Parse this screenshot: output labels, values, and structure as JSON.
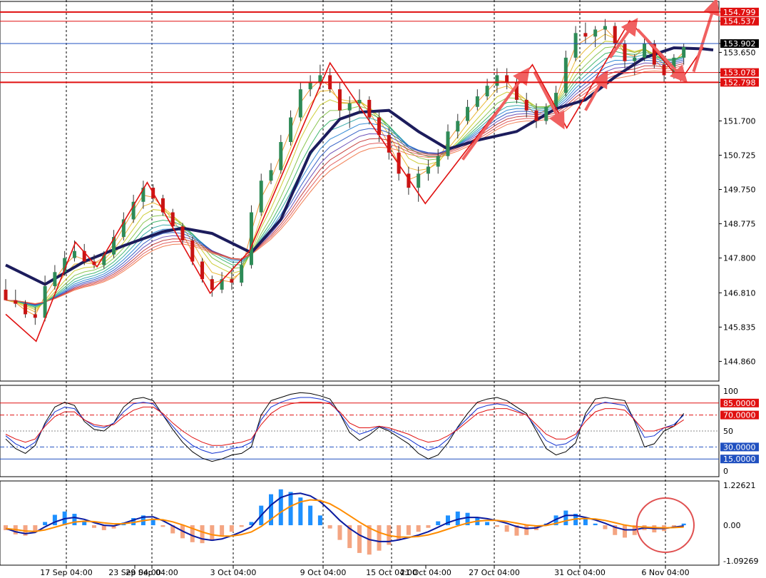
{
  "colors": {
    "background": "#ffffff",
    "plot_bg": "#f0f0f0",
    "grid": "#000000",
    "bull_candle": "#2e8b57",
    "bear_candle": "#c81414",
    "zigzag": "#e01010",
    "arrow": "#f06060",
    "ma_thick": "#1c1c5c",
    "hline_red": "#e01010",
    "hline_blue": "#2050c0",
    "osc_black": "#000000",
    "osc_blue": "#1030d0",
    "osc_red": "#e01010",
    "macd_hist_pos": "#1e90ff",
    "macd_hist_neg": "#f4a582",
    "macd_line": "#0a1aa0",
    "signal_line": "#ff8c00",
    "circle": "#e05050"
  },
  "chart_data": [
    {
      "type": "candlestick",
      "panel": "price",
      "yticks": [
        "154.799",
        "154.537",
        "153.902",
        "153.650",
        "153.078",
        "152.798",
        "151.700",
        "150.725",
        "149.750",
        "148.775",
        "147.800",
        "146.810",
        "145.835",
        "144.860"
      ],
      "ylim": [
        144.3,
        155.1
      ],
      "xticks": [
        "17 Sep 04:00",
        "23 Sep 04:00",
        "29 Sep 04:00",
        "3 Oct 04:00",
        "9 Oct 04:00",
        "15 Oct 04:00",
        "21 Oct 04:00",
        "27 Oct 04:00",
        "31 Oct 04:00",
        "6 Nov 04:00"
      ],
      "levels": [
        {
          "value": 154.799,
          "label": "154.799",
          "style": "red-thick"
        },
        {
          "value": 154.537,
          "label": "154.537",
          "style": "red-thin"
        },
        {
          "value": 153.902,
          "label": "153.902",
          "style": "blue-current"
        },
        {
          "value": 153.078,
          "label": "153.078",
          "style": "red-thin"
        },
        {
          "value": 152.798,
          "label": "152.798",
          "style": "red-thick"
        }
      ],
      "zigzag": [
        {
          "x": 0,
          "y": 146.2
        },
        {
          "x": 3.1,
          "y": 145.43
        },
        {
          "x": 7.1,
          "y": 148.25
        },
        {
          "x": 9.3,
          "y": 147.55
        },
        {
          "x": 14.4,
          "y": 149.95
        },
        {
          "x": 20.8,
          "y": 146.8
        },
        {
          "x": 24.8,
          "y": 148.0
        },
        {
          "x": 33.0,
          "y": 153.35
        },
        {
          "x": 42.7,
          "y": 149.35
        },
        {
          "x": 53.6,
          "y": 153.3
        },
        {
          "x": 57.1,
          "y": 151.5
        },
        {
          "x": 63.5,
          "y": 154.55
        },
        {
          "x": 68.7,
          "y": 152.85
        },
        {
          "x": 71.0,
          "y": 153.8
        }
      ],
      "projection_arrows": [
        {
          "from": [
            46.5,
            150.6
          ],
          "to": [
            53.0,
            153.1
          ]
        },
        {
          "from": [
            53.8,
            153.1
          ],
          "to": [
            56.6,
            151.6
          ]
        },
        {
          "from": [
            59.0,
            152.0
          ],
          "to": [
            61.0,
            153.0
          ]
        },
        {
          "from": [
            61.5,
            153.5
          ],
          "to": [
            64.0,
            154.5
          ]
        },
        {
          "from": [
            64.3,
            154.3
          ],
          "to": [
            69.0,
            152.9
          ]
        },
        {
          "from": [
            70.0,
            153.1
          ],
          "to": [
            72.2,
            155.05
          ]
        }
      ],
      "trend_ma": [
        {
          "x": 0,
          "y": 147.6
        },
        {
          "x": 4,
          "y": 147.05
        },
        {
          "x": 8,
          "y": 147.7
        },
        {
          "x": 12,
          "y": 148.15
        },
        {
          "x": 16,
          "y": 148.55
        },
        {
          "x": 18,
          "y": 148.65
        },
        {
          "x": 21,
          "y": 148.5
        },
        {
          "x": 25,
          "y": 147.95
        },
        {
          "x": 28,
          "y": 148.9
        },
        {
          "x": 31,
          "y": 150.8
        },
        {
          "x": 34,
          "y": 151.75
        },
        {
          "x": 36,
          "y": 151.95
        },
        {
          "x": 39,
          "y": 152.0
        },
        {
          "x": 42,
          "y": 151.4
        },
        {
          "x": 45,
          "y": 150.9
        },
        {
          "x": 48,
          "y": 151.15
        },
        {
          "x": 52,
          "y": 151.4
        },
        {
          "x": 56,
          "y": 152.05
        },
        {
          "x": 59,
          "y": 152.3
        },
        {
          "x": 62,
          "y": 152.95
        },
        {
          "x": 65,
          "y": 153.5
        },
        {
          "x": 68,
          "y": 153.78
        },
        {
          "x": 71,
          "y": 153.75
        },
        {
          "x": 72,
          "y": 153.72
        }
      ],
      "candles": [
        [
          146.9,
          147.2,
          146.7,
          146.6
        ],
        [
          146.6,
          146.9,
          146.4,
          146.5
        ],
        [
          146.5,
          146.6,
          146.1,
          146.2
        ],
        [
          146.2,
          146.4,
          145.9,
          146.1
        ],
        [
          146.1,
          147.3,
          146.0,
          147.0
        ],
        [
          147.0,
          147.6,
          146.9,
          147.4
        ],
        [
          147.4,
          148.0,
          147.3,
          147.8
        ],
        [
          147.8,
          148.3,
          147.7,
          148.0
        ],
        [
          148.0,
          148.2,
          147.6,
          147.7
        ],
        [
          147.7,
          147.9,
          147.5,
          147.6
        ],
        [
          147.6,
          148.0,
          147.5,
          147.9
        ],
        [
          147.9,
          148.6,
          147.8,
          148.4
        ],
        [
          148.4,
          149.1,
          148.3,
          148.9
        ],
        [
          148.9,
          149.6,
          148.8,
          149.4
        ],
        [
          149.4,
          150.0,
          149.2,
          149.8
        ],
        [
          149.8,
          149.9,
          149.4,
          149.5
        ],
        [
          149.5,
          149.6,
          149.0,
          149.1
        ],
        [
          149.1,
          149.2,
          148.6,
          148.7
        ],
        [
          148.7,
          148.8,
          148.2,
          148.3
        ],
        [
          148.3,
          148.4,
          147.6,
          147.7
        ],
        [
          147.7,
          147.8,
          147.1,
          147.2
        ],
        [
          147.2,
          147.3,
          146.7,
          146.9
        ],
        [
          146.9,
          147.4,
          146.8,
          147.2
        ],
        [
          147.2,
          147.5,
          146.9,
          147.1
        ],
        [
          147.1,
          147.8,
          147.0,
          147.6
        ],
        [
          147.6,
          149.3,
          147.5,
          149.1
        ],
        [
          149.1,
          150.2,
          149.0,
          150.0
        ],
        [
          150.0,
          150.5,
          149.9,
          150.3
        ],
        [
          150.3,
          151.3,
          150.2,
          151.1
        ],
        [
          151.1,
          152.0,
          151.0,
          151.8
        ],
        [
          151.8,
          152.8,
          151.7,
          152.6
        ],
        [
          152.6,
          153.0,
          152.4,
          152.8
        ],
        [
          152.8,
          153.3,
          152.6,
          153.0
        ],
        [
          153.0,
          153.2,
          152.5,
          152.6
        ],
        [
          152.6,
          152.8,
          151.8,
          152.0
        ],
        [
          152.0,
          152.4,
          151.5,
          152.2
        ],
        [
          152.2,
          152.6,
          151.9,
          152.3
        ],
        [
          152.3,
          152.4,
          151.6,
          151.8
        ],
        [
          151.8,
          152.0,
          151.1,
          151.3
        ],
        [
          151.3,
          151.5,
          150.6,
          150.8
        ],
        [
          150.8,
          151.0,
          150.0,
          150.2
        ],
        [
          150.2,
          150.4,
          149.6,
          149.8
        ],
        [
          149.8,
          150.4,
          149.4,
          150.2
        ],
        [
          150.2,
          150.6,
          150.0,
          150.4
        ],
        [
          150.4,
          150.9,
          150.2,
          150.7
        ],
        [
          150.7,
          151.6,
          150.6,
          151.4
        ],
        [
          151.4,
          151.9,
          151.2,
          151.7
        ],
        [
          151.7,
          152.3,
          151.6,
          152.1
        ],
        [
          152.1,
          152.6,
          152.0,
          152.4
        ],
        [
          152.4,
          152.9,
          152.3,
          152.7
        ],
        [
          152.7,
          153.2,
          152.5,
          153.0
        ],
        [
          153.0,
          153.2,
          152.6,
          152.8
        ],
        [
          152.8,
          153.0,
          152.2,
          152.3
        ],
        [
          152.3,
          152.5,
          151.8,
          152.0
        ],
        [
          152.0,
          152.2,
          151.5,
          151.7
        ],
        [
          151.7,
          152.2,
          151.6,
          152.1
        ],
        [
          152.1,
          152.7,
          152.0,
          152.5
        ],
        [
          152.5,
          153.7,
          152.4,
          153.5
        ],
        [
          153.5,
          154.4,
          153.4,
          154.2
        ],
        [
          154.2,
          154.5,
          153.9,
          154.1
        ],
        [
          154.1,
          154.4,
          153.8,
          154.3
        ],
        [
          154.3,
          154.6,
          154.0,
          154.4
        ],
        [
          154.4,
          154.5,
          153.7,
          153.9
        ],
        [
          153.9,
          154.0,
          153.2,
          153.4
        ],
        [
          153.4,
          153.6,
          153.0,
          153.5
        ],
        [
          153.5,
          154.1,
          153.4,
          153.9
        ],
        [
          153.9,
          154.0,
          153.2,
          153.3
        ],
        [
          153.3,
          153.4,
          152.8,
          153.0
        ],
        [
          153.0,
          153.6,
          152.9,
          153.5
        ],
        [
          153.5,
          153.9,
          153.3,
          153.8
        ]
      ],
      "ribbon_note": "rainbow moving-average ribbon"
    },
    {
      "type": "line",
      "panel": "oscillator",
      "ylim": [
        0,
        100
      ],
      "yticks": [
        "100",
        "50",
        "0"
      ],
      "levels": [
        {
          "value": 85,
          "label": "85.0000",
          "color": "red"
        },
        {
          "value": 70,
          "label": "70.0000",
          "color": "red-dashdot"
        },
        {
          "value": 30,
          "label": "30.0000",
          "color": "blue-dashdot"
        },
        {
          "value": 15,
          "label": "15.0000",
          "color": "blue"
        }
      ],
      "series": [
        {
          "values": [
            40,
            28,
            22,
            32,
            60,
            80,
            86,
            82,
            62,
            52,
            50,
            60,
            80,
            90,
            92,
            88,
            70,
            52,
            36,
            24,
            16,
            12,
            15,
            20,
            22,
            30,
            70,
            88,
            92,
            96,
            98,
            97,
            94,
            90,
            72,
            48,
            38,
            45,
            55,
            50,
            42,
            34,
            22,
            15,
            20,
            35,
            55,
            72,
            86,
            90,
            92,
            88,
            80,
            72,
            50,
            28,
            20,
            24,
            35,
            72,
            90,
            92,
            90,
            88,
            62,
            30,
            34,
            50,
            56,
            72
          ]
        },
        {
          "values": [
            44,
            34,
            28,
            36,
            58,
            74,
            80,
            78,
            64,
            56,
            54,
            60,
            74,
            84,
            86,
            84,
            70,
            56,
            42,
            32,
            26,
            22,
            24,
            28,
            30,
            36,
            64,
            80,
            86,
            90,
            92,
            92,
            90,
            86,
            72,
            54,
            46,
            50,
            56,
            52,
            46,
            40,
            32,
            26,
            30,
            40,
            54,
            66,
            78,
            82,
            84,
            82,
            76,
            70,
            54,
            38,
            32,
            34,
            42,
            68,
            82,
            86,
            84,
            82,
            64,
            42,
            44,
            54,
            58,
            70
          ]
        },
        {
          "values": [
            46,
            40,
            36,
            40,
            56,
            68,
            74,
            74,
            64,
            58,
            56,
            58,
            68,
            76,
            80,
            80,
            72,
            60,
            50,
            42,
            36,
            32,
            32,
            34,
            36,
            40,
            58,
            72,
            80,
            84,
            86,
            86,
            86,
            84,
            74,
            60,
            54,
            54,
            56,
            54,
            50,
            46,
            40,
            36,
            38,
            44,
            52,
            62,
            72,
            76,
            78,
            78,
            74,
            70,
            58,
            46,
            40,
            40,
            46,
            62,
            74,
            78,
            78,
            76,
            64,
            50,
            50,
            54,
            56,
            64
          ]
        }
      ]
    },
    {
      "type": "bar",
      "panel": "macd",
      "ylim": [
        -1.09269,
        1.22621
      ],
      "yticks": [
        "1.22621",
        "0.00",
        "-1.09269"
      ],
      "histogram": [
        -0.15,
        -0.28,
        -0.32,
        -0.18,
        0.1,
        0.32,
        0.42,
        0.35,
        0.12,
        -0.08,
        -0.15,
        -0.1,
        0.08,
        0.22,
        0.3,
        0.2,
        -0.05,
        -0.25,
        -0.4,
        -0.52,
        -0.55,
        -0.48,
        -0.35,
        -0.2,
        -0.05,
        0.1,
        0.6,
        0.95,
        1.1,
        1.02,
        0.85,
        0.6,
        0.3,
        -0.1,
        -0.45,
        -0.7,
        -0.85,
        -0.9,
        -0.78,
        -0.6,
        -0.45,
        -0.3,
        -0.2,
        -0.08,
        0.12,
        0.3,
        0.42,
        0.38,
        0.25,
        0.1,
        -0.05,
        -0.2,
        -0.32,
        -0.3,
        -0.15,
        0.05,
        0.3,
        0.45,
        0.35,
        0.2,
        0.05,
        -0.12,
        -0.3,
        -0.38,
        -0.3,
        -0.15,
        -0.22,
        -0.18,
        -0.08,
        0.05
      ],
      "macd_line": [
        -0.1,
        -0.2,
        -0.26,
        -0.22,
        -0.05,
        0.1,
        0.2,
        0.24,
        0.18,
        0.08,
        0.0,
        -0.02,
        0.06,
        0.16,
        0.25,
        0.26,
        0.14,
        -0.02,
        -0.18,
        -0.32,
        -0.42,
        -0.46,
        -0.42,
        -0.32,
        -0.2,
        -0.05,
        0.3,
        0.62,
        0.85,
        0.95,
        0.98,
        0.9,
        0.72,
        0.45,
        0.15,
        -0.1,
        -0.3,
        -0.44,
        -0.5,
        -0.5,
        -0.45,
        -0.38,
        -0.3,
        -0.2,
        -0.06,
        0.08,
        0.18,
        0.24,
        0.24,
        0.2,
        0.14,
        0.06,
        -0.04,
        -0.1,
        -0.08,
        0.02,
        0.18,
        0.3,
        0.3,
        0.24,
        0.16,
        0.06,
        -0.06,
        -0.14,
        -0.14,
        -0.08,
        -0.1,
        -0.1,
        -0.06,
        -0.02
      ]
    }
  ]
}
